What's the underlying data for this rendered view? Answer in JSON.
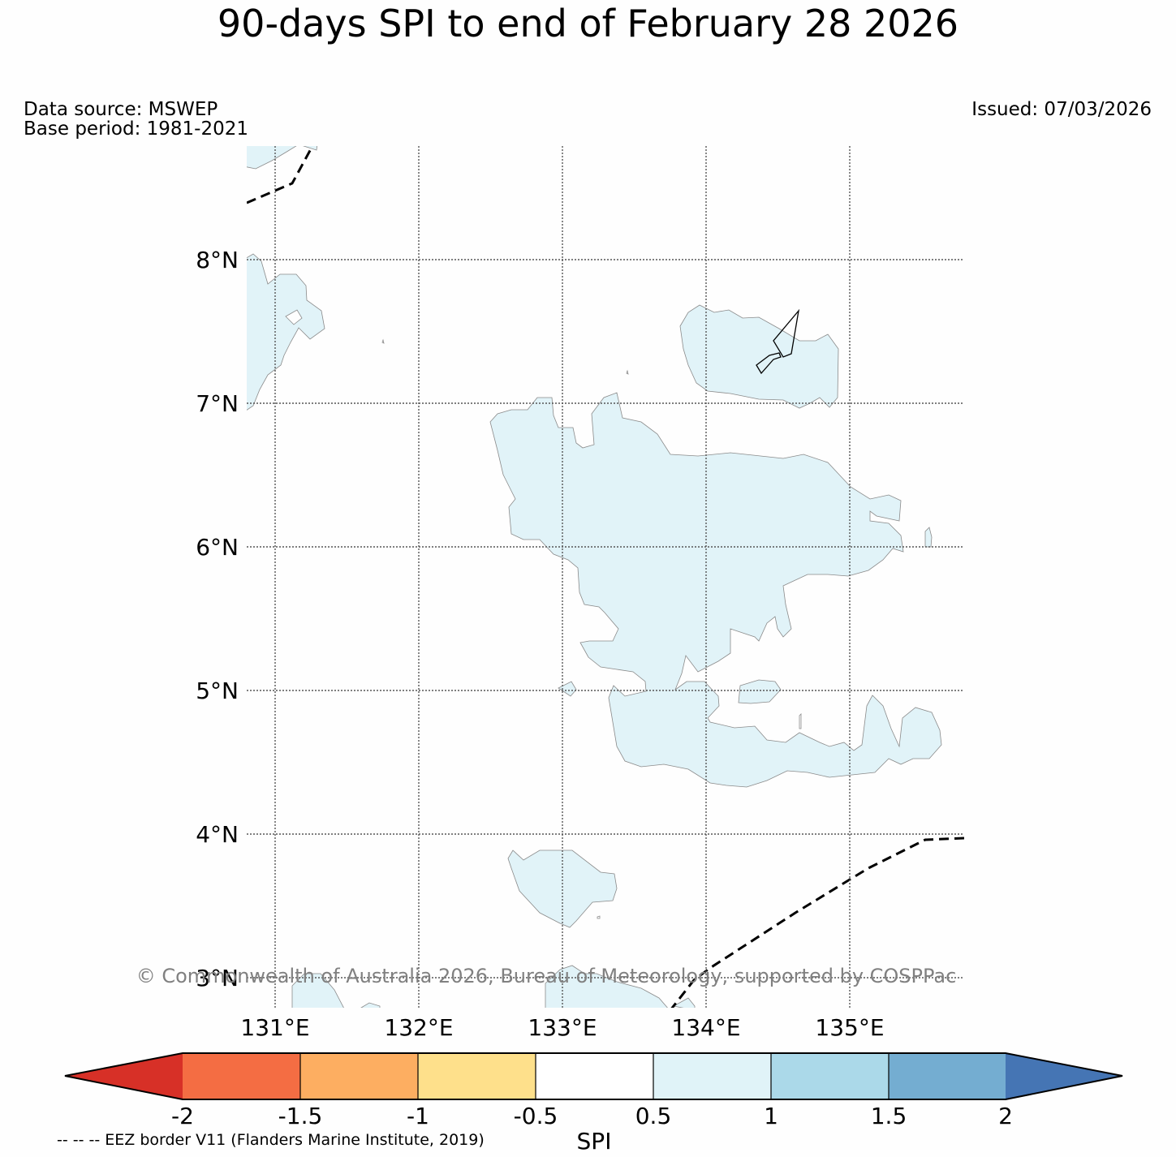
{
  "title": "90-days SPI to end of February 28 2026",
  "data_source": "Data source: MSWEP",
  "base_period": "Base period: 1981-2021",
  "issued": "Issued: 07/03/2026",
  "copyright": "© Commonwealth of Australia 2026, Bureau of Meteorology, supported by COSPPac",
  "eez_note": "-- -- -- EEZ border V11 (Flanders Marine Institute, 2019)",
  "map": {
    "lat_labels": [
      "8°N",
      "7°N",
      "6°N",
      "5°N",
      "4°N",
      "3°N"
    ],
    "lon_labels": [
      "131°E",
      "132°E",
      "133°E",
      "134°E",
      "135°E"
    ],
    "region_fill": "#e1f3f8",
    "background": "#fefefe"
  },
  "colorbar": {
    "label": "SPI",
    "ticks": [
      "-2",
      "-1.5",
      "-1",
      "-0.5",
      "0.5",
      "1",
      "1.5",
      "2"
    ],
    "under_color": "#d73027",
    "over_color": "#4575b4",
    "colors": [
      "#f46d43",
      "#fdae61",
      "#fee08b",
      "#ffffff",
      "#e0f3f8",
      "#abd9e9",
      "#74add1"
    ]
  }
}
